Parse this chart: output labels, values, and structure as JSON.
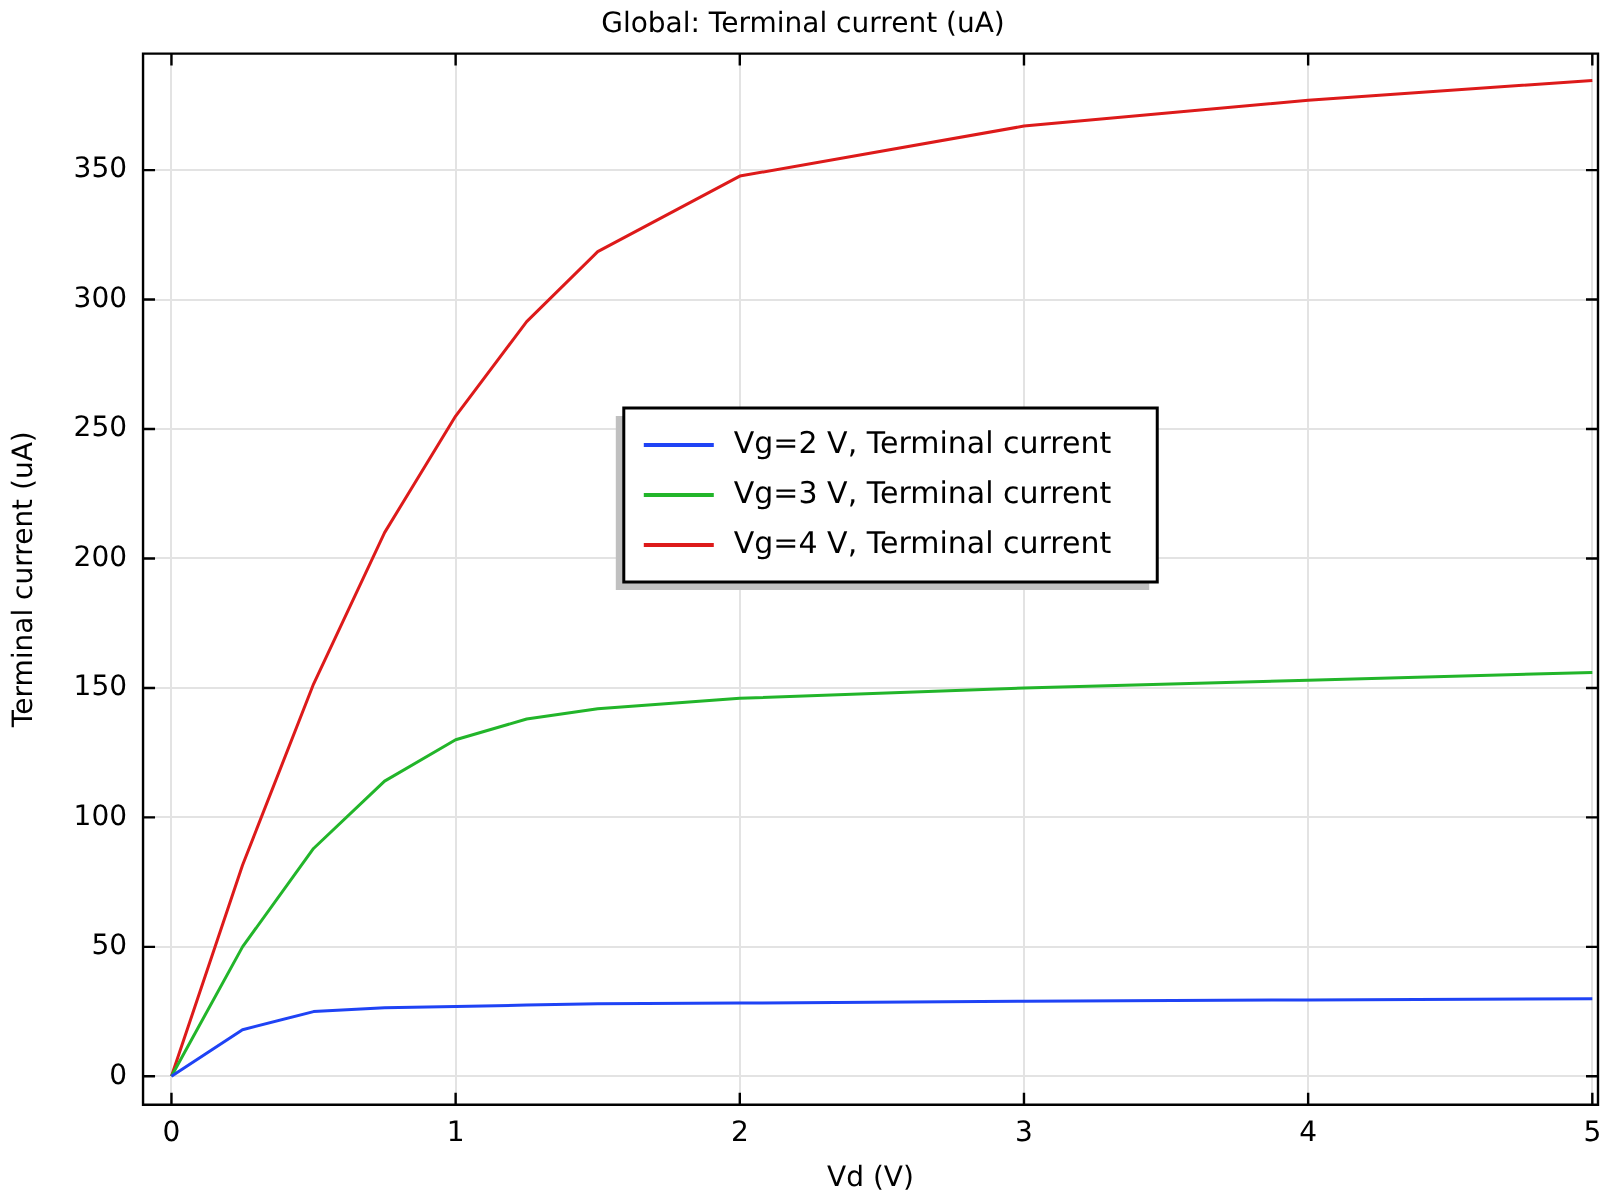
{
  "chart_data": {
    "type": "line",
    "title": "Global: Terminal current (uA)",
    "xlabel": "Vd (V)",
    "ylabel": "Terminal current (uA)",
    "x": [
      0,
      0.25,
      0.5,
      0.75,
      1,
      1.25,
      1.5,
      2,
      3,
      4,
      5
    ],
    "series": [
      {
        "name": "Vg=2 V, Terminal current",
        "color": "#1f43f5",
        "values": [
          0,
          18,
          25,
          26.5,
          27,
          27.5,
          28,
          28.3,
          29,
          29.5,
          30
        ]
      },
      {
        "name": "Vg=3 V, Terminal current",
        "color": "#22b52a",
        "values": [
          0,
          50,
          88,
          114,
          130,
          138,
          142,
          146,
          150,
          153,
          156
        ]
      },
      {
        "name": "Vg=4 V, Terminal current",
        "color": "#dd1a1a",
        "values": [
          0,
          81.5,
          151.5,
          210,
          255,
          291.5,
          318.5,
          347.7,
          367,
          377,
          384.6
        ]
      }
    ],
    "xlim": [
      -0.1,
      5.02
    ],
    "xticks": [
      0,
      1,
      2,
      3,
      4,
      5
    ],
    "ylim": [
      -11,
      395
    ],
    "yticks": [
      0,
      50,
      100,
      150,
      200,
      250,
      300,
      350
    ],
    "grid": true,
    "legend": "center",
    "marker": "none",
    "line_style": "solid"
  }
}
